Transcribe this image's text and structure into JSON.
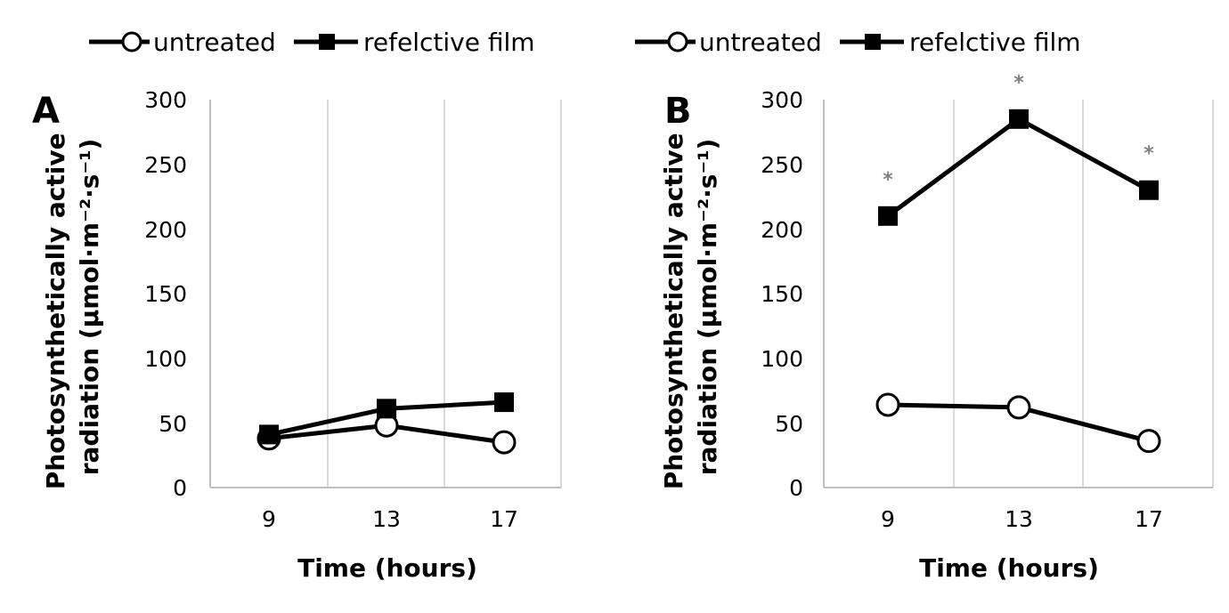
{
  "chart_data": [
    {
      "type": "line",
      "panel_label": "A",
      "categories": [
        "9",
        "13",
        "17"
      ],
      "x": [
        9,
        13,
        17
      ],
      "series": [
        {
          "name": "untreated",
          "marker": "open-circle",
          "values": [
            38,
            48,
            35
          ]
        },
        {
          "name": "refelctive film",
          "marker": "filled-square",
          "values": [
            41,
            61,
            66
          ]
        }
      ],
      "xlabel": "Time (hours)",
      "ylabel": "Photosynthetically active radiation (µmol·m⁻²·s⁻¹)",
      "ylim": [
        0,
        300
      ],
      "yticks": [
        "0",
        "50",
        "100",
        "150",
        "200",
        "250",
        "300"
      ],
      "grid": "vertical",
      "significance_labels": [],
      "legend": "top"
    },
    {
      "type": "line",
      "panel_label": "B",
      "categories": [
        "9",
        "13",
        "17"
      ],
      "x": [
        9,
        13,
        17
      ],
      "series": [
        {
          "name": "untreated",
          "marker": "open-circle",
          "values": [
            64,
            62,
            36
          ]
        },
        {
          "name": "refelctive film",
          "marker": "filled-square",
          "values": [
            210,
            285,
            230
          ]
        }
      ],
      "xlabel": "Time (hours)",
      "ylabel": "Photosynthetically active radiation (µmol·m⁻²·s⁻¹)",
      "ylim": [
        0,
        300
      ],
      "yticks": [
        "0",
        "50",
        "100",
        "150",
        "200",
        "250",
        "300"
      ],
      "grid": "vertical",
      "significance_labels": [
        "*",
        "*",
        "*"
      ],
      "legend": "top"
    }
  ],
  "colors": {
    "line": "#000000",
    "grid": "#d9d9d9",
    "axis": "#bfbfbf",
    "significance": "#808080"
  }
}
